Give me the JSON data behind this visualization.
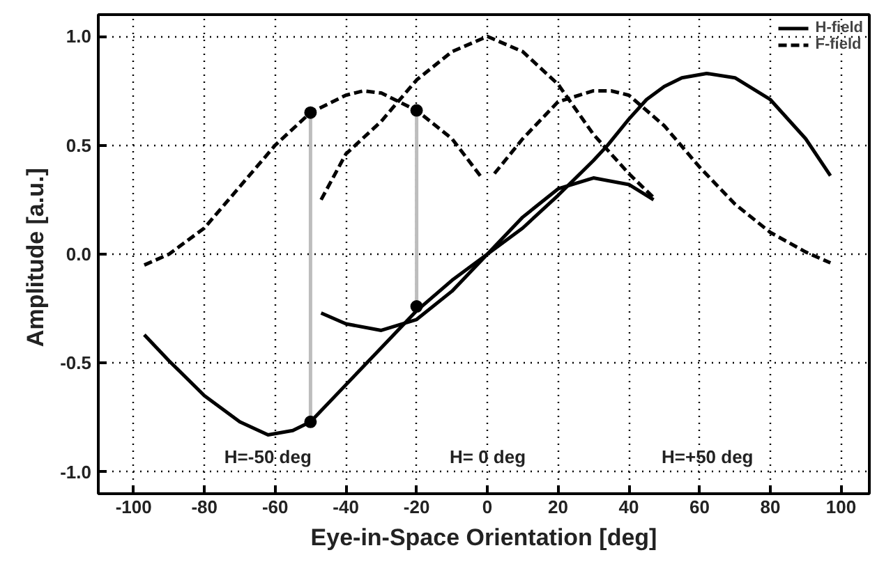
{
  "chart_data": {
    "type": "line",
    "xlabel": "Eye-in-Space Orientation [deg]",
    "ylabel": "Amplitude  [a.u.]",
    "xlim": [
      -110,
      108
    ],
    "ylim": [
      -1.1,
      1.1
    ],
    "xticks": [
      -100,
      -80,
      -60,
      -40,
      -20,
      0,
      20,
      40,
      60,
      80,
      100
    ],
    "yticks": [
      {
        "value": -1.0,
        "label": "-1.0"
      },
      {
        "value": -0.5,
        "label": "-0.5"
      },
      {
        "value": 0,
        "label": "0.0"
      },
      {
        "value": 0.5,
        "label": "0.5"
      },
      {
        "value": 1.0,
        "label": "1.0"
      }
    ],
    "grid": true,
    "legend": "top right",
    "series": [
      {
        "name": "H-field",
        "color": "#000000",
        "line_style": "solid",
        "x": [
          -97,
          -90,
          -80,
          -70,
          -62,
          -55,
          -50,
          -40,
          -30,
          -20,
          -10,
          0,
          10,
          20,
          30,
          34,
          40,
          45,
          50,
          55,
          62,
          70,
          80,
          90,
          97
        ],
        "values": [
          -0.37,
          -0.49,
          -0.65,
          -0.77,
          -0.83,
          -0.81,
          -0.77,
          -0.6,
          -0.43,
          -0.26,
          -0.12,
          0.0,
          0.12,
          0.27,
          0.43,
          0.5,
          0.62,
          0.71,
          0.77,
          0.81,
          0.83,
          0.81,
          0.71,
          0.53,
          0.36
        ]
      },
      {
        "color": "#000000",
        "line_style": "solid",
        "x": [
          -47,
          -40,
          -30,
          -20,
          -10,
          0,
          10,
          20,
          30,
          40,
          47
        ],
        "values": [
          -0.27,
          -0.32,
          -0.35,
          -0.3,
          -0.17,
          0.0,
          0.17,
          0.3,
          0.35,
          0.32,
          0.25
        ]
      },
      {
        "name": "F-field",
        "color": "#000000",
        "line_style": "dashed",
        "x": [
          -97,
          -90,
          -80,
          -70,
          -60,
          -50,
          -40,
          -35,
          -30,
          -20,
          -10,
          -2
        ],
        "values": [
          -0.05,
          0.0,
          0.12,
          0.31,
          0.5,
          0.65,
          0.73,
          0.75,
          0.74,
          0.66,
          0.53,
          0.36
        ]
      },
      {
        "color": "#000000",
        "line_style": "dashed",
        "x": [
          -47,
          -40,
          -30,
          -20,
          -10,
          0,
          10,
          20,
          30,
          40,
          47
        ],
        "values": [
          0.25,
          0.46,
          0.61,
          0.8,
          0.93,
          1.0,
          0.93,
          0.78,
          0.55,
          0.37,
          0.26
        ]
      },
      {
        "color": "#000000",
        "line_style": "dashed",
        "x": [
          2,
          10,
          20,
          30,
          35,
          40,
          50,
          60,
          70,
          80,
          90,
          97
        ],
        "values": [
          0.37,
          0.53,
          0.7,
          0.75,
          0.75,
          0.73,
          0.59,
          0.4,
          0.23,
          0.1,
          0.01,
          -0.04
        ]
      },
      {
        "color": "#bdbdbd",
        "line_style": "solid",
        "x": [
          -50,
          -50
        ],
        "values": [
          -0.77,
          0.65
        ]
      },
      {
        "color": "#bdbdbd",
        "line_style": "solid",
        "x": [
          -20,
          -20
        ],
        "values": [
          -0.24,
          0.66
        ]
      },
      {
        "type": "scatter",
        "color": "#000000",
        "marker": "circle",
        "x": [
          -50,
          -50,
          -20,
          -20
        ],
        "values": [
          -0.77,
          0.65,
          -0.24,
          0.66
        ]
      }
    ],
    "annotations": [
      "H=-50 deg",
      "H= 0 deg",
      "H=+50 deg"
    ]
  }
}
